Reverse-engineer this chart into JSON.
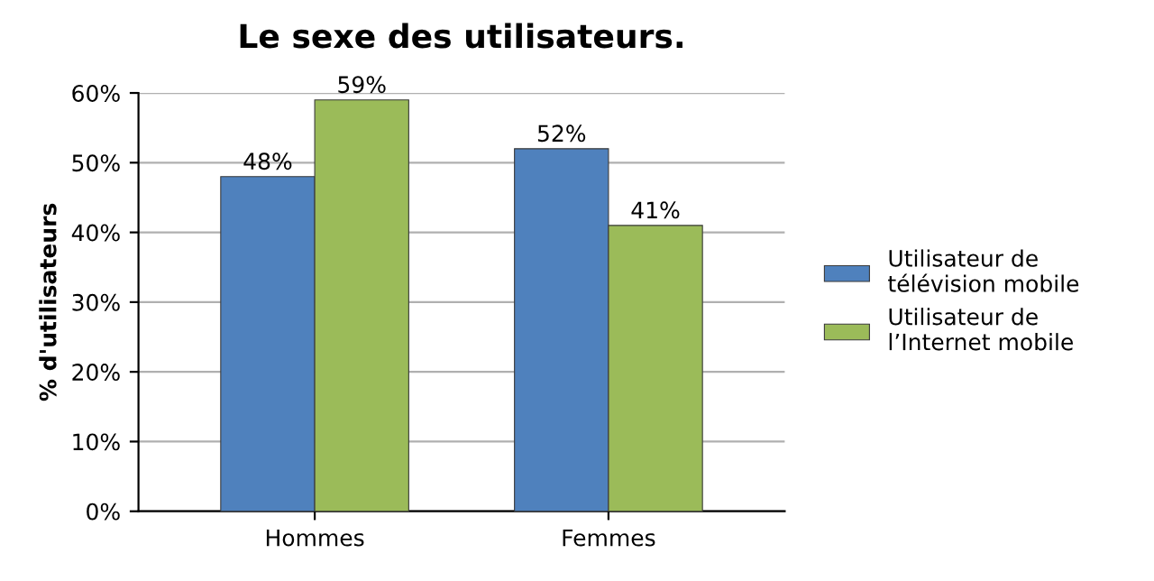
{
  "chart_data": {
    "type": "bar",
    "title": "Le sexe des utilisateurs.",
    "ylabel": "% d'utilisateurs",
    "categories": [
      "Hommes",
      "Femmes"
    ],
    "series": [
      {
        "name": "Utilisateur de\ntélévision mobile",
        "color": "#4f81bd",
        "values": [
          48,
          52
        ],
        "value_labels": [
          "48%",
          "52%"
        ]
      },
      {
        "name": "Utilisateur de\nl’Internet mobile",
        "color": "#9bbb59",
        "values": [
          59,
          41
        ],
        "value_labels": [
          "59%",
          "41%"
        ]
      }
    ],
    "ylim": [
      0,
      60
    ],
    "yticks": [
      {
        "value": 0,
        "label": "0%"
      },
      {
        "value": 10,
        "label": "10%"
      },
      {
        "value": 20,
        "label": "20%"
      },
      {
        "value": 30,
        "label": "30%"
      },
      {
        "value": 40,
        "label": "40%"
      },
      {
        "value": 50,
        "label": "50%"
      },
      {
        "value": 60,
        "label": "60%"
      }
    ],
    "grid": "y",
    "legend": "right"
  }
}
